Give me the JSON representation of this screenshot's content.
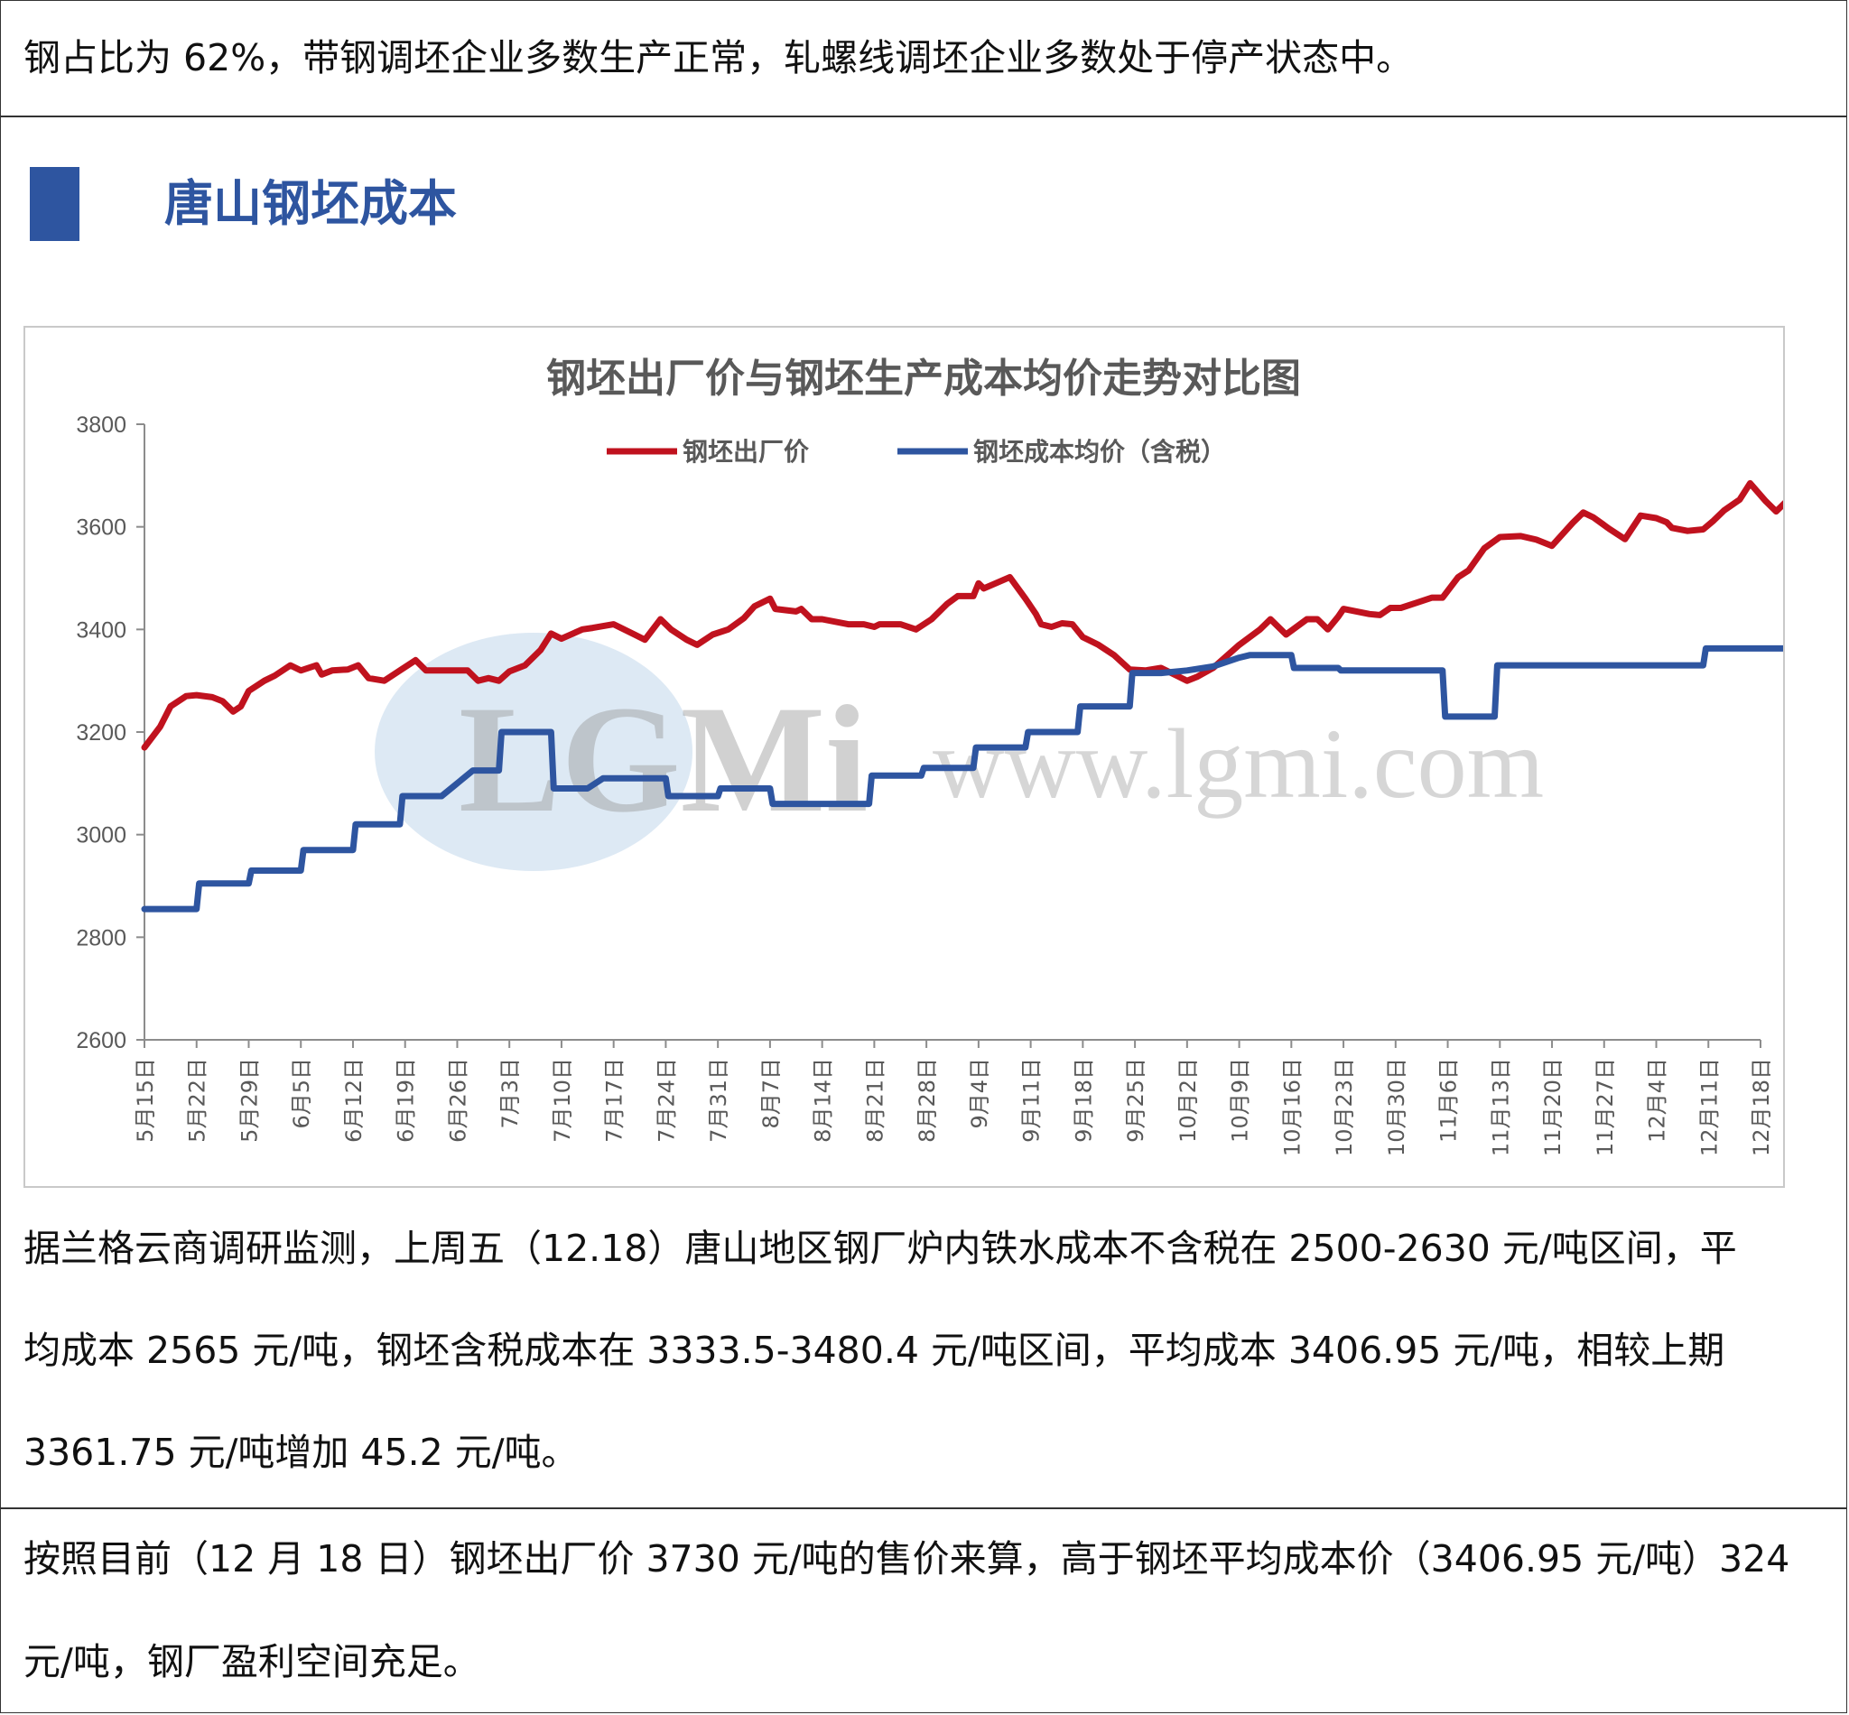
{
  "top_text": "钢占比为 62%，带钢调坯企业多数生产正常，轧螺线调坯企业多数处于停产状态中。",
  "section": {
    "title": "唐山钢坯成本",
    "accent_color": "#2e55a0"
  },
  "watermark": {
    "logo_text": "LGMi",
    "url_text": "www.lgmi.com"
  },
  "chart_data": {
    "type": "line",
    "title": "钢坯出厂价与钢坯生产成本均价走势对比图",
    "ylim": [
      2600,
      3800
    ],
    "yticks": [
      2600,
      2800,
      3000,
      3200,
      3400,
      3600,
      3800
    ],
    "grid": false,
    "legend_position": "top",
    "categories": [
      "5月15日",
      "5月22日",
      "5月29日",
      "6月5日",
      "6月12日",
      "6月19日",
      "6月26日",
      "7月3日",
      "7月10日",
      "7月17日",
      "7月24日",
      "7月31日",
      "8月7日",
      "8月14日",
      "8月21日",
      "8月28日",
      "9月4日",
      "9月11日",
      "9月18日",
      "9月25日",
      "10月2日",
      "10月9日",
      "10月16日",
      "10月23日",
      "10月30日",
      "11月6日",
      "11月13日",
      "11月20日",
      "11月27日",
      "12月4日",
      "12月11日",
      "12月18日"
    ],
    "series": [
      {
        "name": "钢坯出厂价",
        "color": "#c0121e",
        "points": [
          [
            0,
            3170
          ],
          [
            0.3,
            3210
          ],
          [
            0.5,
            3250
          ],
          [
            0.8,
            3270
          ],
          [
            1,
            3272
          ],
          [
            1.3,
            3268
          ],
          [
            1.5,
            3260
          ],
          [
            1.7,
            3240
          ],
          [
            1.85,
            3250
          ],
          [
            2,
            3280
          ],
          [
            2.3,
            3300
          ],
          [
            2.5,
            3310
          ],
          [
            2.8,
            3330
          ],
          [
            3,
            3320
          ],
          [
            3.3,
            3330
          ],
          [
            3.4,
            3312
          ],
          [
            3.6,
            3320
          ],
          [
            3.9,
            3322
          ],
          [
            4.1,
            3330
          ],
          [
            4.3,
            3305
          ],
          [
            4.6,
            3300
          ],
          [
            4.9,
            3320
          ],
          [
            5.2,
            3340
          ],
          [
            5.4,
            3320
          ],
          [
            5.8,
            3320
          ],
          [
            6.2,
            3320
          ],
          [
            6.4,
            3300
          ],
          [
            6.6,
            3305
          ],
          [
            6.8,
            3300
          ],
          [
            7,
            3318
          ],
          [
            7.3,
            3330
          ],
          [
            7.6,
            3360
          ],
          [
            7.8,
            3392
          ],
          [
            8,
            3382
          ],
          [
            8.4,
            3400
          ],
          [
            8.6,
            3403
          ],
          [
            9,
            3410
          ],
          [
            9.4,
            3390
          ],
          [
            9.6,
            3380
          ],
          [
            9.9,
            3420
          ],
          [
            10.1,
            3400
          ],
          [
            10.4,
            3380
          ],
          [
            10.6,
            3370
          ],
          [
            10.9,
            3390
          ],
          [
            11.2,
            3400
          ],
          [
            11.5,
            3422
          ],
          [
            11.7,
            3445
          ],
          [
            12,
            3460
          ],
          [
            12.1,
            3440
          ],
          [
            12.5,
            3435
          ],
          [
            12.6,
            3440
          ],
          [
            12.8,
            3420
          ],
          [
            13,
            3420
          ],
          [
            13.5,
            3410
          ],
          [
            13.8,
            3410
          ],
          [
            14,
            3405
          ],
          [
            14.1,
            3410
          ],
          [
            14.5,
            3410
          ],
          [
            14.8,
            3400
          ],
          [
            15.1,
            3420
          ],
          [
            15.4,
            3450
          ],
          [
            15.6,
            3465
          ],
          [
            15.9,
            3465
          ],
          [
            16,
            3490
          ],
          [
            16.1,
            3480
          ],
          [
            16.6,
            3502
          ],
          [
            16.9,
            3460
          ],
          [
            17.1,
            3430
          ],
          [
            17.2,
            3410
          ],
          [
            17.4,
            3405
          ],
          [
            17.6,
            3412
          ],
          [
            17.8,
            3410
          ],
          [
            18,
            3385
          ],
          [
            18.3,
            3370
          ],
          [
            18.6,
            3350
          ],
          [
            18.9,
            3322
          ],
          [
            19.2,
            3320
          ],
          [
            19.5,
            3325
          ],
          [
            19.8,
            3310
          ],
          [
            20,
            3300
          ],
          [
            20.2,
            3308
          ],
          [
            20.5,
            3325
          ],
          [
            21,
            3370
          ],
          [
            21.4,
            3400
          ],
          [
            21.6,
            3420
          ],
          [
            21.9,
            3390
          ],
          [
            22.3,
            3420
          ],
          [
            22.5,
            3420
          ],
          [
            22.7,
            3400
          ],
          [
            22.9,
            3425
          ],
          [
            23,
            3440
          ],
          [
            23.5,
            3430
          ],
          [
            23.7,
            3428
          ],
          [
            23.9,
            3442
          ],
          [
            24.1,
            3442
          ],
          [
            24.4,
            3452
          ],
          [
            24.7,
            3462
          ],
          [
            24.9,
            3462
          ],
          [
            25.2,
            3502
          ],
          [
            25.4,
            3515
          ],
          [
            25.7,
            3558
          ],
          [
            26.0,
            3580
          ],
          [
            26.4,
            3582
          ],
          [
            26.7,
            3575
          ],
          [
            27.0,
            3563
          ],
          [
            27.4,
            3608
          ],
          [
            27.6,
            3628
          ],
          [
            27.8,
            3618
          ],
          [
            28.1,
            3596
          ],
          [
            28.4,
            3576
          ],
          [
            28.7,
            3622
          ],
          [
            29.0,
            3617
          ],
          [
            29.2,
            3609
          ],
          [
            29.3,
            3598
          ],
          [
            29.6,
            3592
          ],
          [
            29.9,
            3595
          ],
          [
            30.1,
            3612
          ],
          [
            30.3,
            3632
          ],
          [
            30.6,
            3653
          ],
          [
            30.8,
            3685
          ],
          [
            31.1,
            3650
          ],
          [
            31.3,
            3630
          ],
          [
            31.6,
            3660
          ],
          [
            31.8,
            3676
          ],
          [
            32,
            3735
          ]
        ]
      },
      {
        "name": "钢坯成本均价（含税）",
        "color": "#2e55a0",
        "points": [
          [
            0,
            2855
          ],
          [
            1,
            2855
          ],
          [
            1.05,
            2905
          ],
          [
            2,
            2905
          ],
          [
            2.05,
            2930
          ],
          [
            3,
            2930
          ],
          [
            3.05,
            2970
          ],
          [
            4,
            2970
          ],
          [
            4.05,
            3020
          ],
          [
            4.9,
            3020
          ],
          [
            4.95,
            3075
          ],
          [
            5.7,
            3075
          ],
          [
            6.3,
            3125
          ],
          [
            6.8,
            3125
          ],
          [
            6.85,
            3200
          ],
          [
            7.8,
            3200
          ],
          [
            7.85,
            3090
          ],
          [
            8.5,
            3090
          ],
          [
            8.8,
            3110
          ],
          [
            10,
            3110
          ],
          [
            10.05,
            3075
          ],
          [
            11,
            3075
          ],
          [
            11.05,
            3090
          ],
          [
            12,
            3090
          ],
          [
            12.05,
            3060
          ],
          [
            13.9,
            3060
          ],
          [
            13.95,
            3115
          ],
          [
            14.9,
            3115
          ],
          [
            14.95,
            3130
          ],
          [
            15.9,
            3130
          ],
          [
            15.95,
            3170
          ],
          [
            16.9,
            3170
          ],
          [
            16.95,
            3200
          ],
          [
            17.9,
            3200
          ],
          [
            17.95,
            3250
          ],
          [
            18.9,
            3250
          ],
          [
            18.95,
            3315
          ],
          [
            19.5,
            3315
          ],
          [
            20,
            3320
          ],
          [
            20.5,
            3328
          ],
          [
            21,
            3345
          ],
          [
            21.2,
            3350
          ],
          [
            22,
            3350
          ],
          [
            22.05,
            3325
          ],
          [
            22.9,
            3325
          ],
          [
            22.95,
            3320
          ],
          [
            24.9,
            3320
          ],
          [
            24.95,
            3230
          ],
          [
            25.9,
            3230
          ],
          [
            25.95,
            3330
          ],
          [
            29.9,
            3330
          ],
          [
            29.95,
            3363
          ],
          [
            31.9,
            3363
          ],
          [
            32,
            3410
          ]
        ]
      }
    ]
  },
  "paragraphs": [
    "据兰格云商调研监测，上周五（12.18）唐山地区钢厂炉内铁水成本不含税在 2500-2630 元/吨区间，平",
    "均成本 2565 元/吨，钢坯含税成本在 3333.5-3480.4 元/吨区间，平均成本 3406.95 元/吨，相较上期",
    "3361.75 元/吨增加 45.2 元/吨。",
    "按照目前（12 月 18 日）钢坯出厂价 3730 元/吨的售价来算，高于钢坯平均成本价（3406.95 元/吨）324",
    "元/吨，钢厂盈利空间充足。"
  ]
}
